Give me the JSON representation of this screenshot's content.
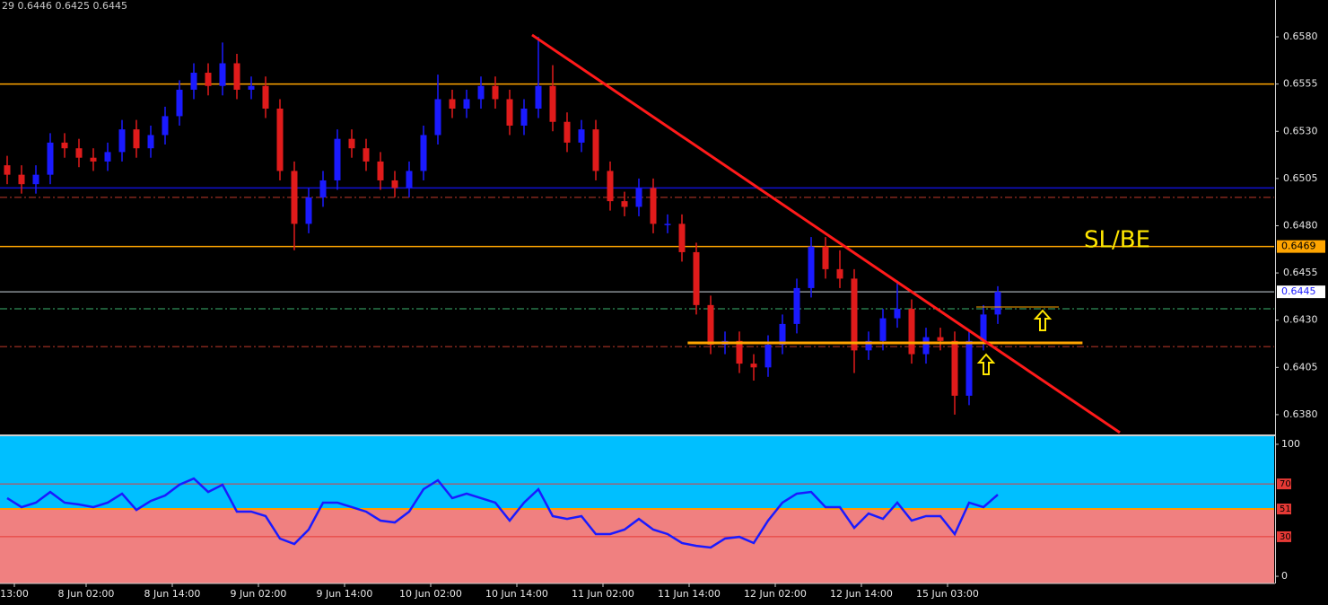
{
  "chart_data": [
    {
      "type": "candlestick",
      "header": "29 0.6446 0.6425 0.6445",
      "annotation": "SL/BE",
      "up_color": "#1a1aff",
      "down_color": "#e01b1b",
      "xlim": [
        -0.5,
        88.25
      ],
      "ylim": [
        0.63695,
        0.65995
      ],
      "yticks": [
        {
          "value": 0.658,
          "label": "0.6580"
        },
        0.6555,
        {
          "value": 0.653,
          "label": "0.6530"
        },
        0.6505,
        {
          "value": 0.648,
          "label": "0.6480"
        },
        0.6455,
        {
          "value": 0.643,
          "label": "0.6430"
        },
        0.6405,
        {
          "value": 0.638,
          "label": "0.6380"
        }
      ],
      "open": [
        0.6512,
        0.6507,
        0.6502,
        0.6507,
        0.6524,
        0.6521,
        0.6516,
        0.6514,
        0.6519,
        0.6531,
        0.6521,
        0.6528,
        0.6538,
        0.6552,
        0.6561,
        0.6554,
        0.6566,
        0.6552,
        0.6554,
        0.6542,
        0.6509,
        0.6481,
        0.6495,
        0.6504,
        0.6526,
        0.6521,
        0.6514,
        0.6504,
        0.65,
        0.6509,
        0.6528,
        0.6547,
        0.6542,
        0.6547,
        0.6554,
        0.6547,
        0.6533,
        0.6542,
        0.6554,
        0.6535,
        0.6524,
        0.6531,
        0.6509,
        0.6493,
        0.649,
        0.65,
        0.6481,
        0.6481,
        0.6466,
        0.6438,
        0.6417,
        0.6419,
        0.6407,
        0.6405,
        0.6417,
        0.6428,
        0.6447,
        0.6469,
        0.6457,
        0.6452,
        0.6414,
        0.6419,
        0.6431,
        0.6436,
        0.6412,
        0.6421,
        0.6419,
        0.639,
        0.6419,
        0.6433
      ],
      "high": [
        0.6517,
        0.6512,
        0.6512,
        0.6529,
        0.6529,
        0.6526,
        0.6521,
        0.6524,
        0.6536,
        0.6536,
        0.6533,
        0.6543,
        0.6557,
        0.6566,
        0.6566,
        0.6577,
        0.6571,
        0.6559,
        0.6559,
        0.6547,
        0.6514,
        0.65,
        0.6509,
        0.6531,
        0.6531,
        0.6526,
        0.6519,
        0.6509,
        0.6514,
        0.6533,
        0.656,
        0.6552,
        0.6552,
        0.6559,
        0.6559,
        0.6552,
        0.6547,
        0.658,
        0.6565,
        0.654,
        0.6536,
        0.6536,
        0.6514,
        0.6498,
        0.6505,
        0.6505,
        0.6486,
        0.6486,
        0.6471,
        0.6443,
        0.6424,
        0.6424,
        0.6412,
        0.6422,
        0.6433,
        0.6452,
        0.6474,
        0.6474,
        0.6467,
        0.6457,
        0.6424,
        0.6436,
        0.6451,
        0.6441,
        0.6426,
        0.6426,
        0.6424,
        0.6424,
        0.6438,
        0.6448
      ],
      "low": [
        0.6502,
        0.6497,
        0.6497,
        0.6502,
        0.6516,
        0.6511,
        0.6509,
        0.6509,
        0.6514,
        0.6516,
        0.6516,
        0.6523,
        0.6533,
        0.6547,
        0.6549,
        0.6549,
        0.6547,
        0.6547,
        0.6537,
        0.6504,
        0.6467,
        0.6476,
        0.649,
        0.6499,
        0.6516,
        0.6509,
        0.6499,
        0.6495,
        0.6495,
        0.6504,
        0.6523,
        0.6537,
        0.6537,
        0.6542,
        0.6542,
        0.6528,
        0.6528,
        0.6537,
        0.653,
        0.6519,
        0.6519,
        0.6504,
        0.6488,
        0.6485,
        0.6485,
        0.6476,
        0.6476,
        0.6461,
        0.6433,
        0.6412,
        0.6412,
        0.6402,
        0.6398,
        0.64,
        0.6412,
        0.6423,
        0.6442,
        0.6452,
        0.6447,
        0.6402,
        0.6409,
        0.6414,
        0.6426,
        0.6407,
        0.6407,
        0.6414,
        0.638,
        0.6385,
        0.6414,
        0.6428
      ],
      "close": [
        0.6507,
        0.6502,
        0.6507,
        0.6524,
        0.6521,
        0.6516,
        0.6514,
        0.6519,
        0.6531,
        0.6521,
        0.6528,
        0.6538,
        0.6552,
        0.6561,
        0.6554,
        0.6566,
        0.6552,
        0.6554,
        0.6542,
        0.6509,
        0.6481,
        0.6495,
        0.6504,
        0.6526,
        0.6521,
        0.6514,
        0.6504,
        0.65,
        0.6509,
        0.6528,
        0.6547,
        0.6542,
        0.6547,
        0.6554,
        0.6547,
        0.6533,
        0.6542,
        0.6554,
        0.6535,
        0.6524,
        0.6531,
        0.6509,
        0.6493,
        0.649,
        0.65,
        0.6481,
        0.6481,
        0.6466,
        0.6438,
        0.6417,
        0.6419,
        0.6407,
        0.6405,
        0.6417,
        0.6428,
        0.6447,
        0.6469,
        0.6457,
        0.6452,
        0.6414,
        0.6419,
        0.6431,
        0.6436,
        0.6412,
        0.6421,
        0.6419,
        0.639,
        0.6419,
        0.6433,
        0.6445
      ],
      "levels": [
        {
          "value": 0.6555,
          "color": "#ffa500",
          "style": "solid"
        },
        {
          "value": 0.65,
          "color": "#1010d0",
          "style": "solid"
        },
        {
          "value": 0.6495,
          "color": "#c0392b",
          "style": "dashdot"
        },
        {
          "value": 0.6469,
          "color": "#ffa500",
          "style": "solid",
          "tag_color": "#ffa500",
          "tag_text_color": "#000000"
        },
        {
          "value": 0.6445,
          "color": "#8a9096",
          "style": "solid",
          "tag_color": "#ffffff",
          "tag_text_color": "#1a1aff"
        },
        {
          "value": 0.6436,
          "color": "#3cb371",
          "style": "dashdot"
        },
        {
          "value": 0.6416,
          "color": "#c0392b",
          "style": "dashdot"
        }
      ],
      "segments": [
        {
          "x": [
            47.4,
            74.9
          ],
          "y": [
            0.6418,
            0.6418
          ],
          "color": "#ffa500",
          "width": 3
        },
        {
          "x": [
            67.5,
            73.25
          ],
          "y": [
            0.6437,
            0.6437
          ],
          "color": "#ffa500",
          "width": 1
        },
        {
          "x": [
            36.56,
            77.5
          ],
          "y": [
            0.6581,
            0.63705
          ],
          "color": "#ff1a1a",
          "width": 3
        }
      ]
    },
    {
      "type": "line",
      "color": "#1a1aff",
      "xlim": [
        -0.5,
        88.25
      ],
      "ylim": [
        -5.4,
        106.1
      ],
      "yticks": [
        100,
        0
      ],
      "levels": [
        {
          "value": 70,
          "color": "#e53935",
          "tag_color": "#e53935"
        },
        {
          "value": 51,
          "color": "#ff9800",
          "tag_color": "#e53935",
          "fill_above": "#00bfff",
          "fill_below": "#f08080"
        },
        {
          "value": 30,
          "color": "#e53935",
          "tag_color": "#e53935"
        }
      ],
      "values": [
        59.2,
        52.4,
        55.8,
        63.9,
        55.8,
        54.4,
        52.4,
        55.8,
        62.6,
        50.3,
        57.1,
        61.2,
        69.4,
        74.1,
        63.9,
        69.4,
        49.0,
        49.0,
        45.6,
        28.6,
        24.5,
        35.4,
        55.8,
        55.8,
        52.4,
        49.0,
        42.2,
        40.8,
        49.0,
        66.0,
        72.8,
        59.2,
        62.6,
        59.2,
        55.8,
        42.2,
        55.8,
        66.0,
        45.6,
        43.5,
        45.6,
        32.0,
        32.0,
        35.4,
        43.5,
        35.4,
        32.0,
        25.2,
        23.1,
        21.8,
        28.6,
        29.9,
        25.2,
        42.2,
        55.8,
        62.6,
        63.9,
        52.4,
        52.4,
        36.7,
        47.6,
        43.5,
        55.8,
        42.2,
        45.6,
        45.6,
        32.0,
        55.8,
        52.4,
        61.9
      ],
      "xticks": [
        {
          "value": 0.5,
          "label": "13:00"
        },
        {
          "value": 5.5,
          "label": "8 Jun 02:00"
        },
        {
          "value": 11.5,
          "label": "8 Jun 14:00"
        },
        {
          "value": 17.5,
          "label": "9 Jun 02:00"
        },
        {
          "value": 23.5,
          "label": "9 Jun 14:00"
        },
        {
          "value": 29.5,
          "label": "10 Jun 02:00"
        },
        {
          "value": 35.5,
          "label": "10 Jun 14:00"
        },
        {
          "value": 41.5,
          "label": "11 Jun 02:00"
        },
        {
          "value": 47.5,
          "label": "11 Jun 14:00"
        },
        {
          "value": 53.5,
          "label": "12 Jun 02:00"
        },
        {
          "value": 59.5,
          "label": "12 Jun 14:00"
        },
        {
          "value": 65.5,
          "label": "15 Jun 03:00"
        }
      ]
    }
  ]
}
